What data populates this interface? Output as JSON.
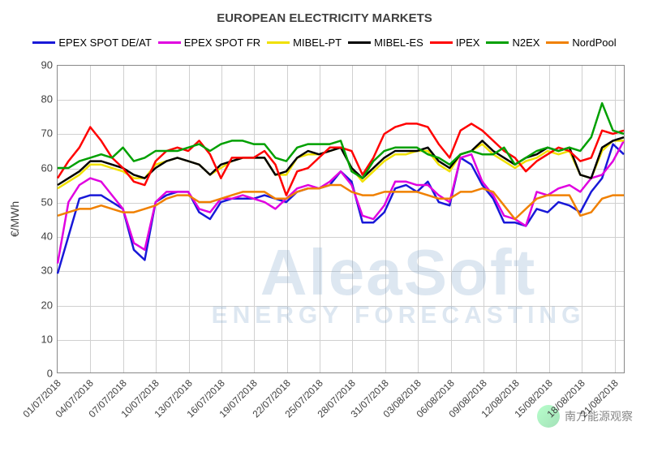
{
  "chart": {
    "type": "line",
    "title": "EUROPEAN ELECTRICITY MARKETS",
    "title_fontsize": 15,
    "background_color": "#ffffff",
    "grid_color": "#d0d0d0",
    "axis_color": "#888888",
    "text_color": "#404040",
    "watermark_line1": "AleaSoft",
    "watermark_line2": "ENERGY FORECASTING",
    "watermark_color": "rgba(120,160,200,0.25)",
    "ylabel": "€/MWh",
    "label_fontsize": 14,
    "ylim": [
      0,
      90
    ],
    "ytick_step": 10,
    "line_width": 2.5,
    "categories": [
      "01/07/2018",
      "02/07/2018",
      "03/07/2018",
      "04/07/2018",
      "05/07/2018",
      "06/07/2018",
      "07/07/2018",
      "08/07/2018",
      "09/07/2018",
      "10/07/2018",
      "11/07/2018",
      "12/07/2018",
      "13/07/2018",
      "14/07/2018",
      "15/07/2018",
      "16/07/2018",
      "17/07/2018",
      "18/07/2018",
      "19/07/2018",
      "20/07/2018",
      "21/07/2018",
      "22/07/2018",
      "23/07/2018",
      "24/07/2018",
      "25/07/2018",
      "26/07/2018",
      "27/07/2018",
      "28/07/2018",
      "29/07/2018",
      "30/07/2018",
      "31/07/2018",
      "01/08/2018",
      "02/08/2018",
      "03/08/2018",
      "04/08/2018",
      "05/08/2018",
      "06/08/2018",
      "07/08/2018",
      "08/08/2018",
      "09/08/2018",
      "10/08/2018",
      "11/08/2018",
      "12/08/2018",
      "13/08/2018",
      "14/08/2018",
      "15/08/2018",
      "16/08/2018",
      "17/08/2018",
      "18/08/2018",
      "19/08/2018",
      "20/08/2018",
      "21/08/2018",
      "22/08/2018"
    ],
    "x_tick_every": 3,
    "series": [
      {
        "name": "EPEX SPOT DE/AT",
        "color": "#1818d8",
        "values": [
          29,
          40,
          51,
          52,
          52,
          50,
          48,
          36,
          33,
          50,
          52,
          53,
          53,
          47,
          45,
          50,
          51,
          51,
          51,
          52,
          51,
          50,
          53,
          54,
          54,
          55,
          59,
          56,
          44,
          44,
          47,
          54,
          55,
          53,
          56,
          50,
          49,
          63,
          61,
          55,
          51,
          44,
          44,
          43,
          48,
          47,
          50,
          49,
          47,
          53,
          57,
          67,
          64
        ]
      },
      {
        "name": "EPEX SPOT FR",
        "color": "#e000e0",
        "values": [
          32,
          50,
          55,
          57,
          56,
          52,
          48,
          38,
          36,
          50,
          53,
          53,
          53,
          48,
          47,
          51,
          51,
          52,
          51,
          50,
          48,
          51,
          54,
          55,
          54,
          56,
          59,
          55,
          46,
          45,
          49,
          56,
          56,
          55,
          55,
          52,
          50,
          63,
          64,
          56,
          52,
          46,
          45,
          43,
          53,
          52,
          54,
          55,
          53,
          57,
          58,
          62,
          68
        ]
      },
      {
        "name": "MIBEL-PT",
        "color": "#f0e000",
        "values": [
          54,
          56,
          58,
          61,
          61,
          60,
          59,
          57,
          57,
          61,
          62,
          63,
          62,
          61,
          58,
          60,
          62,
          63,
          63,
          63,
          58,
          58,
          63,
          64,
          64,
          65,
          66,
          60,
          56,
          59,
          62,
          64,
          64,
          65,
          65,
          61,
          59,
          64,
          65,
          67,
          64,
          62,
          60,
          62,
          63,
          65,
          64,
          65,
          58,
          57,
          65,
          68,
          68
        ]
      },
      {
        "name": "MIBEL-ES",
        "color": "#000000",
        "values": [
          55,
          57,
          59,
          62,
          62,
          61,
          60,
          58,
          57,
          60,
          62,
          63,
          62,
          61,
          58,
          61,
          62,
          63,
          63,
          63,
          58,
          59,
          63,
          65,
          64,
          65,
          66,
          60,
          57,
          60,
          63,
          65,
          65,
          65,
          66,
          62,
          60,
          64,
          65,
          68,
          65,
          63,
          61,
          63,
          64,
          66,
          65,
          66,
          58,
          57,
          66,
          68,
          69
        ]
      },
      {
        "name": "IPEX",
        "color": "#ff0000",
        "values": [
          57,
          62,
          66,
          72,
          68,
          63,
          60,
          56,
          55,
          62,
          65,
          66,
          65,
          68,
          64,
          57,
          63,
          63,
          63,
          65,
          61,
          52,
          59,
          60,
          63,
          66,
          66,
          65,
          58,
          63,
          70,
          72,
          73,
          73,
          72,
          67,
          63,
          71,
          73,
          71,
          68,
          65,
          63,
          59,
          62,
          64,
          66,
          65,
          62,
          63,
          71,
          70,
          71
        ]
      },
      {
        "name": "N2EX",
        "color": "#00a000",
        "values": [
          60,
          60,
          62,
          63,
          64,
          63,
          66,
          62,
          63,
          65,
          65,
          65,
          66,
          67,
          65,
          67,
          68,
          68,
          67,
          67,
          63,
          62,
          66,
          67,
          67,
          67,
          68,
          59,
          57,
          62,
          65,
          66,
          66,
          66,
          64,
          63,
          61,
          64,
          65,
          64,
          64,
          66,
          61,
          63,
          65,
          66,
          65,
          66,
          65,
          69,
          79,
          71,
          70
        ]
      },
      {
        "name": "NordPool",
        "color": "#f08000",
        "values": [
          46,
          47,
          48,
          48,
          49,
          48,
          47,
          47,
          48,
          49,
          51,
          52,
          52,
          50,
          50,
          51,
          52,
          53,
          53,
          53,
          51,
          51,
          53,
          54,
          54,
          55,
          55,
          53,
          52,
          52,
          53,
          53,
          53,
          53,
          52,
          51,
          51,
          53,
          53,
          54,
          53,
          49,
          45,
          48,
          51,
          52,
          52,
          52,
          46,
          47,
          51,
          52,
          52
        ]
      }
    ]
  },
  "footer": {
    "mark_text": "南方能源观察"
  }
}
